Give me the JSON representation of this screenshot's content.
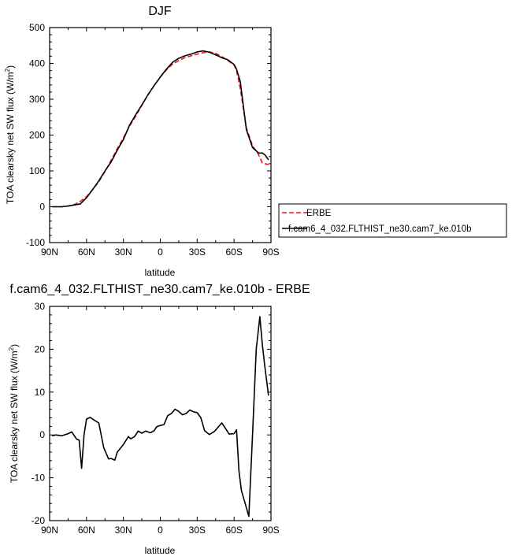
{
  "chart_data": [
    {
      "type": "line",
      "title": "DJF",
      "xlabel": "latitude",
      "ylabel_main": "TOA clearsky net SW flux (W/m",
      "ylabel_sup": "2",
      "ylabel_tail": ")",
      "xlim": [
        -90,
        90
      ],
      "ylim": [
        -100,
        500
      ],
      "xticks": [
        -90,
        -60,
        -30,
        0,
        30,
        60,
        90
      ],
      "xtick_labels": [
        "90N",
        "60N",
        "30N",
        "0",
        "30S",
        "60S",
        "90S"
      ],
      "yticks": [
        -100,
        0,
        100,
        200,
        300,
        400,
        500
      ],
      "ytick_labels": [
        "-100",
        "0",
        "100",
        "200",
        "300",
        "400",
        "500"
      ],
      "legend_position": "right",
      "series": [
        {
          "name": "ERBE",
          "color": "#e8141e",
          "dash": "dashed",
          "x": [
            -88,
            -80,
            -75,
            -70,
            -65,
            -60,
            -55,
            -50,
            -45,
            -40,
            -35,
            -30,
            -25,
            -20,
            -15,
            -10,
            -5,
            0,
            5,
            10,
            15,
            20,
            25,
            30,
            35,
            40,
            45,
            50,
            55,
            60,
            62,
            65,
            70,
            75,
            80,
            83,
            85,
            88
          ],
          "y": [
            0,
            0,
            2,
            6,
            15,
            28,
            48,
            70,
            98,
            130,
            162,
            192,
            225,
            253,
            283,
            312,
            338,
            362,
            382,
            398,
            408,
            416,
            421,
            426,
            430,
            432,
            428,
            419,
            408,
            395,
            380,
            330,
            220,
            170,
            145,
            122,
            120,
            118
          ]
        },
        {
          "name": "f.cam6_4_032.FLTHIST_ne30.cam7_ke.010b",
          "color": "#000000",
          "dash": "solid",
          "x": [
            -88,
            -80,
            -75,
            -70,
            -65,
            -60,
            -55,
            -50,
            -45,
            -40,
            -35,
            -30,
            -25,
            -20,
            -15,
            -10,
            -5,
            0,
            5,
            10,
            15,
            20,
            25,
            30,
            35,
            40,
            45,
            50,
            55,
            60,
            62,
            65,
            70,
            75,
            80,
            83,
            85,
            88
          ],
          "y": [
            0,
            0,
            2,
            5,
            8,
            25,
            48,
            72,
            100,
            125,
            158,
            188,
            228,
            257,
            284,
            313,
            338,
            362,
            384,
            403,
            414,
            421,
            426,
            432,
            435,
            431,
            424,
            416,
            410,
            397,
            384,
            350,
            215,
            165,
            150,
            150,
            145,
            131
          ]
        }
      ]
    },
    {
      "type": "line",
      "title": "f.cam6_4_032.FLTHIST_ne30.cam7_ke.010b - ERBE",
      "xlabel": "latitude",
      "ylabel_main": "TOA clearsky net SW flux (W/m",
      "ylabel_sup": "2",
      "ylabel_tail": ")",
      "xlim": [
        -90,
        90
      ],
      "ylim": [
        -20,
        30
      ],
      "xticks": [
        -90,
        -60,
        -30,
        0,
        30,
        60,
        90
      ],
      "xtick_labels": [
        "90N",
        "60N",
        "30N",
        "0",
        "30S",
        "60S",
        "90S"
      ],
      "yticks": [
        -20,
        -10,
        0,
        10,
        20,
        30
      ],
      "ytick_labels": [
        "-20",
        "-10",
        "0",
        "10",
        "20",
        "30"
      ],
      "series": [
        {
          "name": "",
          "color": "#000000",
          "dash": "solid",
          "x": [
            -88,
            -85,
            -80,
            -75,
            -72,
            -68,
            -66,
            -64,
            -62,
            -60,
            -57,
            -54,
            -50,
            -46,
            -42,
            -40,
            -37,
            -35,
            -33,
            -30,
            -26,
            -24,
            -21,
            -18,
            -15,
            -12,
            -8,
            -5,
            -3,
            0,
            3,
            6,
            9,
            12,
            15,
            18,
            21,
            24,
            27,
            30,
            33,
            36,
            40,
            44,
            50,
            56,
            60,
            62,
            64,
            66,
            68,
            72,
            75,
            78,
            81,
            83,
            85,
            88
          ],
          "y": [
            -0.2,
            0.0,
            -0.2,
            0.3,
            0.7,
            -1.0,
            -1.2,
            -7.8,
            0.0,
            3.7,
            4.1,
            3.5,
            2.8,
            -3.0,
            -5.6,
            -5.5,
            -5.9,
            -4.0,
            -3.3,
            -2.2,
            -0.4,
            -0.9,
            -0.4,
            0.9,
            0.4,
            0.9,
            0.5,
            1.0,
            1.9,
            2.2,
            2.4,
            4.5,
            5.0,
            6.0,
            5.5,
            4.7,
            5.0,
            5.8,
            5.4,
            5.2,
            4.0,
            1.0,
            0.1,
            0.8,
            2.8,
            0.2,
            0.3,
            1.2,
            -8.5,
            -13.0,
            -15.0,
            -19.0,
            0.0,
            20.0,
            27.6,
            21.0,
            16.0,
            9.2
          ]
        }
      ]
    }
  ]
}
